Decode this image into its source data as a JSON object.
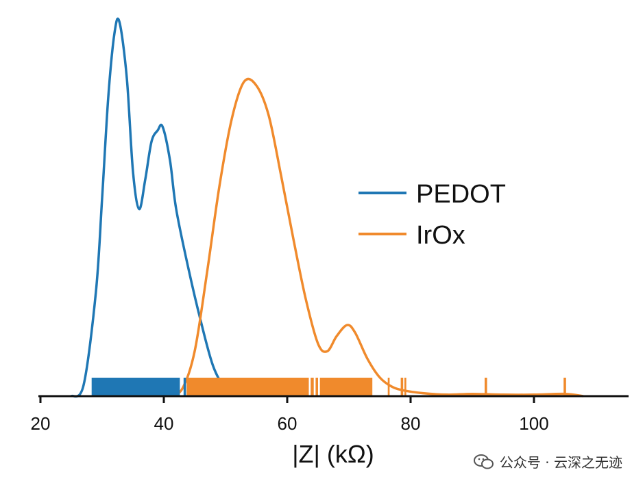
{
  "chart_data": {
    "type": "line",
    "title": "",
    "xlabel": "|Z| (kΩ)",
    "ylabel": "",
    "xlim": [
      20,
      115
    ],
    "xticks": [
      20,
      40,
      60,
      80,
      100
    ],
    "legend_position": "right",
    "series": [
      {
        "name": "PEDOT",
        "color": "#1f77b4",
        "x": [
          25,
          27,
          29,
          30,
          31,
          32,
          32.8,
          34,
          35,
          36,
          37,
          38,
          39,
          39.8,
          41,
          42,
          44,
          46,
          48,
          50,
          52
        ],
        "y": [
          0.0,
          0.03,
          0.28,
          0.53,
          0.8,
          0.97,
          1.0,
          0.85,
          0.6,
          0.5,
          0.58,
          0.68,
          0.71,
          0.72,
          0.63,
          0.5,
          0.34,
          0.2,
          0.08,
          0.02,
          0.0
        ],
        "rug": [
          {
            "from": 28.3,
            "to": 42.6
          },
          {
            "from": 43.2,
            "to": 43.6
          }
        ]
      },
      {
        "name": "IrOx",
        "color": "#f08a2c",
        "x": [
          41,
          43,
          45,
          47,
          49,
          51,
          53,
          55,
          57,
          59,
          61,
          63,
          65,
          66.5,
          68,
          69.7,
          71,
          73,
          75,
          77,
          79,
          82,
          86,
          90,
          95,
          100,
          105,
          108
        ],
        "y": [
          0.0,
          0.02,
          0.12,
          0.33,
          0.56,
          0.74,
          0.84,
          0.83,
          0.75,
          0.59,
          0.42,
          0.26,
          0.14,
          0.12,
          0.16,
          0.19,
          0.17,
          0.1,
          0.05,
          0.025,
          0.015,
          0.008,
          0.004,
          0.006,
          0.004,
          0.004,
          0.006,
          0.0
        ],
        "rug": [
          {
            "from": 43.7,
            "to": 63.5
          },
          {
            "from": 63.8,
            "to": 64.3
          },
          {
            "from": 64.6,
            "to": 65.0
          },
          {
            "from": 65.3,
            "to": 73.8
          },
          {
            "from": 76.3,
            "to": 76.6
          },
          {
            "from": 78.4,
            "to": 78.8
          },
          {
            "from": 79.0,
            "to": 79.3
          },
          {
            "from": 92.0,
            "to": 92.4
          },
          {
            "from": 104.8,
            "to": 105.2
          }
        ]
      }
    ],
    "legend": [
      "PEDOT",
      "IrOx"
    ]
  },
  "watermark": {
    "text": "公众号 · 云深之无迹",
    "icon": "wechat-icon"
  }
}
